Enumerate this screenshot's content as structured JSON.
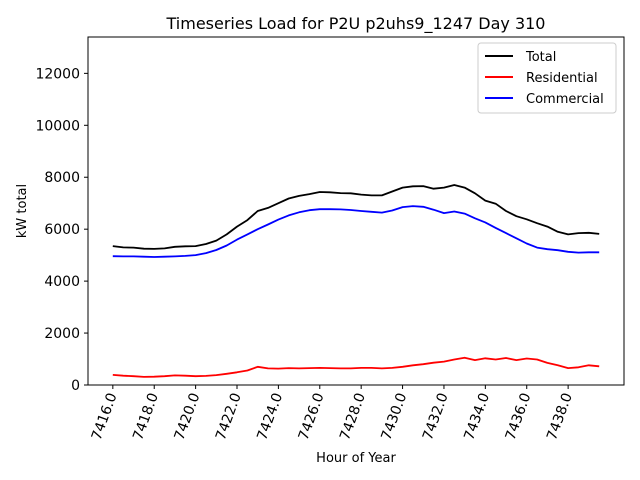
{
  "chart_data": {
    "type": "line",
    "title": "Timeseries Load for P2U p2uhs9_1247  Day 310",
    "xlabel": "Hour of Year",
    "ylabel": "kW total",
    "xlim": [
      7414.8,
      7440.7
    ],
    "ylim": [
      0,
      13400
    ],
    "xticks": [
      7416,
      7418,
      7420,
      7422,
      7424,
      7426,
      7428,
      7430,
      7432,
      7434,
      7436,
      7438
    ],
    "xtick_labels": [
      "7416.0",
      "7418.0",
      "7420.0",
      "7422.0",
      "7424.0",
      "7426.0",
      "7428.0",
      "7430.0",
      "7432.0",
      "7434.0",
      "7436.0",
      "7438.0"
    ],
    "yticks": [
      0,
      2000,
      4000,
      6000,
      8000,
      10000,
      12000
    ],
    "ytick_labels": [
      "0",
      "2000",
      "4000",
      "6000",
      "8000",
      "10000",
      "12000"
    ],
    "grid": false,
    "legend_position": "top-right",
    "series": [
      {
        "name": "Total",
        "color": "#000000",
        "x": [
          7416,
          7416.5,
          7417,
          7417.5,
          7418,
          7418.5,
          7419,
          7419.5,
          7420,
          7420.5,
          7421,
          7421.5,
          7422,
          7422.5,
          7423,
          7423.5,
          7424,
          7424.5,
          7425,
          7425.5,
          7426,
          7426.5,
          7427,
          7427.5,
          7428,
          7428.5,
          7429,
          7429.5,
          7430,
          7430.5,
          7431,
          7431.5,
          7432,
          7432.5,
          7433,
          7433.5,
          7434,
          7434.5,
          7435,
          7435.5,
          7436,
          7436.5,
          7437,
          7437.5,
          7438,
          7438.5,
          7439,
          7439.5
        ],
        "values": [
          5350,
          5300,
          5290,
          5250,
          5240,
          5260,
          5320,
          5340,
          5350,
          5430,
          5560,
          5800,
          6100,
          6350,
          6700,
          6820,
          7000,
          7180,
          7280,
          7350,
          7430,
          7420,
          7390,
          7380,
          7330,
          7300,
          7300,
          7450,
          7600,
          7650,
          7660,
          7560,
          7600,
          7700,
          7600,
          7380,
          7100,
          6980,
          6700,
          6500,
          6380,
          6230,
          6100,
          5900,
          5800,
          5850,
          5860,
          5820
        ]
      },
      {
        "name": "Residential",
        "color": "#ff0000",
        "x": [
          7416,
          7416.5,
          7417,
          7417.5,
          7418,
          7418.5,
          7419,
          7419.5,
          7420,
          7420.5,
          7421,
          7421.5,
          7422,
          7422.5,
          7423,
          7423.5,
          7424,
          7424.5,
          7425,
          7425.5,
          7426,
          7426.5,
          7427,
          7427.5,
          7428,
          7428.5,
          7429,
          7429.5,
          7430,
          7430.5,
          7431,
          7431.5,
          7432,
          7432.5,
          7433,
          7433.5,
          7434,
          7434.5,
          7435,
          7435.5,
          7436,
          7436.5,
          7437,
          7437.5,
          7438,
          7438.5,
          7439,
          7439.5
        ],
        "values": [
          390,
          360,
          340,
          310,
          320,
          340,
          370,
          360,
          340,
          350,
          380,
          430,
          490,
          560,
          700,
          640,
          630,
          650,
          640,
          650,
          660,
          650,
          640,
          640,
          660,
          660,
          640,
          660,
          700,
          760,
          800,
          860,
          900,
          980,
          1050,
          960,
          1030,
          980,
          1040,
          960,
          1020,
          980,
          850,
          760,
          650,
          680,
          760,
          720
        ]
      },
      {
        "name": "Commercial",
        "color": "#0000ff",
        "x": [
          7416,
          7416.5,
          7417,
          7417.5,
          7418,
          7418.5,
          7419,
          7419.5,
          7420,
          7420.5,
          7421,
          7421.5,
          7422,
          7422.5,
          7423,
          7423.5,
          7424,
          7424.5,
          7425,
          7425.5,
          7426,
          7426.5,
          7427,
          7427.5,
          7428,
          7428.5,
          7429,
          7429.5,
          7430,
          7430.5,
          7431,
          7431.5,
          7432,
          7432.5,
          7433,
          7433.5,
          7434,
          7434.5,
          7435,
          7435.5,
          7436,
          7436.5,
          7437,
          7437.5,
          7438,
          7438.5,
          7439,
          7439.5
        ],
        "values": [
          4960,
          4950,
          4950,
          4940,
          4930,
          4940,
          4950,
          4970,
          5000,
          5080,
          5200,
          5370,
          5600,
          5800,
          6000,
          6180,
          6370,
          6530,
          6650,
          6730,
          6770,
          6770,
          6760,
          6740,
          6700,
          6670,
          6640,
          6720,
          6850,
          6890,
          6860,
          6750,
          6620,
          6680,
          6600,
          6420,
          6260,
          6050,
          5850,
          5650,
          5450,
          5290,
          5230,
          5190,
          5130,
          5100,
          5110,
          5110
        ]
      }
    ]
  }
}
